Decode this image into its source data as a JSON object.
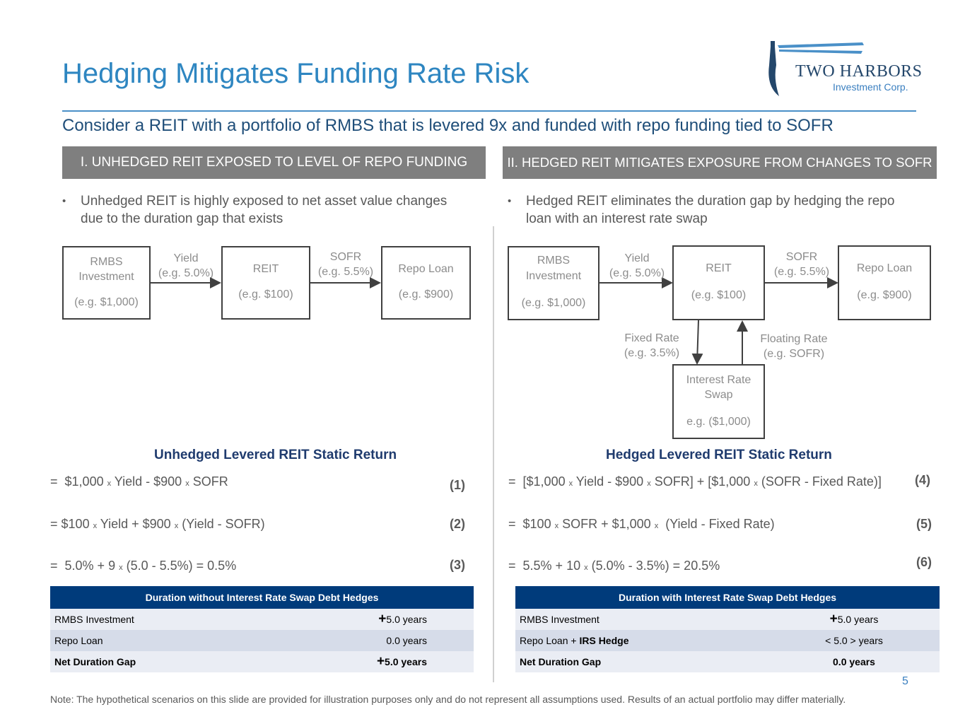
{
  "header": {
    "title": "Hedging Mitigates Funding Rate Risk",
    "subtitle": "Consider a REIT with a portfolio of RMBS that is levered 9x and funded with repo funding tied to SOFR",
    "logo": {
      "name": "TWO HARBORS",
      "sub": "Investment Corp."
    }
  },
  "left": {
    "band": "I. UNHEDGED REIT EXPOSED TO LEVEL OF REPO FUNDING",
    "bullet_line1": "Unhedged REIT is highly exposed to net asset value changes",
    "bullet_line2": "due to the duration gap that exists",
    "diagram": {
      "rmbs_l1": "RMBS",
      "rmbs_l2": "Investment",
      "rmbs_val": "(e.g. $1,000)",
      "reit": "REIT",
      "reit_val": "(e.g. $100)",
      "repo": "Repo Loan",
      "repo_val": "(e.g. $900)",
      "yield": "Yield",
      "yield_val": "(e.g. 5.0%)",
      "sofr": "SOFR",
      "sofr_val": "(e.g. 5.5%)"
    },
    "return_title": "Unhedged Levered REIT Static Return",
    "eq1": {
      "eqsign": "=",
      "a": "$1,000",
      "x1": "x",
      "b": "Yield - $900",
      "x2": "x",
      "c": "SOFR",
      "num": "(1)"
    },
    "eq2": {
      "eqsign": "=",
      "a": "$100",
      "x1": "x",
      "b": "Yield + $900",
      "x2": "x",
      "c": "(Yield - SOFR)",
      "num": "(2)"
    },
    "eq3": {
      "eqsign": "=",
      "a": "5.0% + 9",
      "x1": "x",
      "b": "(5.0 - 5.5%) = 0.5%",
      "num": "(3)"
    },
    "table": {
      "header": "Duration without Interest Rate Swap Debt Hedges",
      "rows": [
        {
          "label": "RMBS Investment",
          "sign": "+",
          "value": "5.0 years"
        },
        {
          "label": "Repo Loan",
          "sign": "",
          "value": "0.0 years"
        },
        {
          "label": "Net Duration Gap",
          "sign": "+",
          "value": "5.0 years"
        }
      ]
    }
  },
  "right": {
    "band": "II. HEDGED REIT MITIGATES EXPOSURE FROM CHANGES TO SOFR",
    "bullet_line1": "Hedged REIT eliminates the duration gap by hedging the repo",
    "bullet_line2": "loan with an interest rate swap",
    "diagram": {
      "rmbs_l1": "RMBS",
      "rmbs_l2": "Investment",
      "rmbs_val": "(e.g. $1,000)",
      "reit": "REIT",
      "reit_val": "(e.g. $100)",
      "repo": "Repo Loan",
      "repo_val": "(e.g. $900)",
      "yield": "Yield",
      "yield_val": "(e.g. 5.0%)",
      "sofr": "SOFR",
      "sofr_val": "(e.g. 5.5%)",
      "fixed": "Fixed Rate",
      "fixed_val": "(e.g. 3.5%)",
      "floating": "Floating Rate",
      "floating_val": "(e.g. SOFR)",
      "swap_l1": "Interest Rate",
      "swap_l2": "Swap",
      "swap_val": "e.g. ($1,000)"
    },
    "return_title": "Hedged Levered REIT Static Return",
    "eq4": {
      "eqsign": "=",
      "a": "[$1,000",
      "x1": "x",
      "b": "Yield - $900",
      "x2": "x",
      "c": "SOFR] + [$1,000",
      "x3": "x",
      "d": "(SOFR - Fixed Rate)]",
      "num": "(4)"
    },
    "eq5": {
      "eqsign": "=",
      "a": "$100",
      "x1": "x",
      "b": "SOFR + $1,000",
      "x2": "x",
      "c": "(Yield - Fixed Rate)",
      "num": "(5)"
    },
    "eq6": {
      "eqsign": "=",
      "a": "5.5% + 10",
      "x1": "x",
      "b": "(5.0% - 3.5%) = 20.5%",
      "num": "(6)"
    },
    "table": {
      "header": "Duration with Interest Rate Swap Debt Hedges",
      "rows": [
        {
          "label": "RMBS Investment",
          "sign": "+",
          "value": "5.0 years"
        },
        {
          "label": "Repo Loan + ",
          "label_bold": "IRS Hedge",
          "sign": "",
          "value": "< 5.0 > years"
        },
        {
          "label": "Net Duration Gap",
          "sign": "",
          "value": "0.0 years"
        }
      ]
    }
  },
  "footer": {
    "page": "5",
    "note": "Note: The hypothetical scenarios on this slide are provided for illustration purposes only and do not represent all assumptions used. Results of an actual portfolio may differ materially."
  }
}
